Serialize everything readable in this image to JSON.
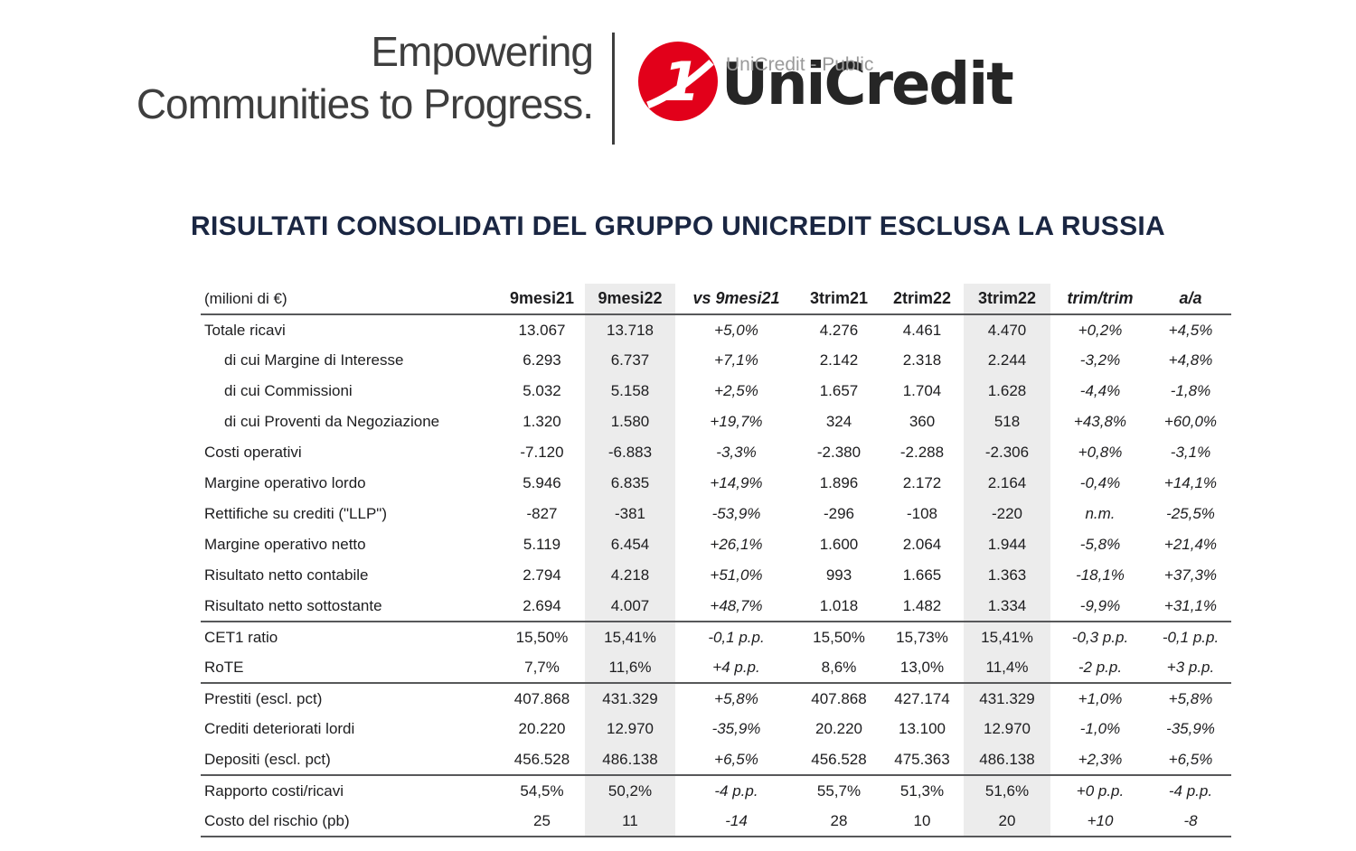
{
  "header": {
    "tagline_line1": "Empowering",
    "tagline_line2": "Communities to Progress.",
    "logo_text": "UniCredit",
    "watermark": "UniCredit - Public"
  },
  "title": "RISULTATI CONSOLIDATI DEL GRUPPO UNICREDIT ESCLUSA LA RUSSIA",
  "colors": {
    "accent_red": "#e2001a",
    "title_navy": "#1a2642",
    "shaded_column": "#ececec",
    "rule_gray": "#57585a"
  },
  "table": {
    "unit_label": "(milioni di €)",
    "columns": [
      {
        "label": "9mesi21",
        "italic": false,
        "shaded": false
      },
      {
        "label": "9mesi22",
        "italic": false,
        "shaded": true
      },
      {
        "label": "vs 9mesi21",
        "italic": true,
        "shaded": false
      },
      {
        "label": "3trim21",
        "italic": false,
        "shaded": false
      },
      {
        "label": "2trim22",
        "italic": false,
        "shaded": false
      },
      {
        "label": "3trim22",
        "italic": false,
        "shaded": true
      },
      {
        "label": "trim/trim",
        "italic": true,
        "shaded": false
      },
      {
        "label": "a/a",
        "italic": true,
        "shaded": false
      }
    ],
    "rows": [
      {
        "label": "Totale ricavi",
        "indent": false,
        "divider_after": false,
        "values": [
          "13.067",
          "13.718",
          "+5,0%",
          "4.276",
          "4.461",
          "4.470",
          "+0,2%",
          "+4,5%"
        ]
      },
      {
        "label": "di cui Margine di Interesse",
        "indent": true,
        "divider_after": false,
        "values": [
          "6.293",
          "6.737",
          "+7,1%",
          "2.142",
          "2.318",
          "2.244",
          "-3,2%",
          "+4,8%"
        ]
      },
      {
        "label": "di cui Commissioni",
        "indent": true,
        "divider_after": false,
        "values": [
          "5.032",
          "5.158",
          "+2,5%",
          "1.657",
          "1.704",
          "1.628",
          "-4,4%",
          "-1,8%"
        ]
      },
      {
        "label": "di cui Proventi da Negoziazione",
        "indent": true,
        "divider_after": false,
        "values": [
          "1.320",
          "1.580",
          "+19,7%",
          "324",
          "360",
          "518",
          "+43,8%",
          "+60,0%"
        ]
      },
      {
        "label": "Costi operativi",
        "indent": false,
        "divider_after": false,
        "values": [
          "-7.120",
          "-6.883",
          "-3,3%",
          "-2.380",
          "-2.288",
          "-2.306",
          "+0,8%",
          "-3,1%"
        ]
      },
      {
        "label": "Margine operativo lordo",
        "indent": false,
        "divider_after": false,
        "values": [
          "5.946",
          "6.835",
          "+14,9%",
          "1.896",
          "2.172",
          "2.164",
          "-0,4%",
          "+14,1%"
        ]
      },
      {
        "label": "Rettifiche su crediti (\"LLP\")",
        "indent": false,
        "divider_after": false,
        "values": [
          "-827",
          "-381",
          "-53,9%",
          "-296",
          "-108",
          "-220",
          "n.m.",
          "-25,5%"
        ]
      },
      {
        "label": "Margine operativo netto",
        "indent": false,
        "divider_after": false,
        "values": [
          "5.119",
          "6.454",
          "+26,1%",
          "1.600",
          "2.064",
          "1.944",
          "-5,8%",
          "+21,4%"
        ]
      },
      {
        "label": "Risultato netto contabile",
        "indent": false,
        "divider_after": false,
        "values": [
          "2.794",
          "4.218",
          "+51,0%",
          "993",
          "1.665",
          "1.363",
          "-18,1%",
          "+37,3%"
        ]
      },
      {
        "label": "Risultato netto sottostante",
        "indent": false,
        "divider_after": true,
        "values": [
          "2.694",
          "4.007",
          "+48,7%",
          "1.018",
          "1.482",
          "1.334",
          "-9,9%",
          "+31,1%"
        ]
      },
      {
        "label": "CET1 ratio",
        "indent": false,
        "divider_after": false,
        "values": [
          "15,50%",
          "15,41%",
          "-0,1 p.p.",
          "15,50%",
          "15,73%",
          "15,41%",
          "-0,3 p.p.",
          "-0,1 p.p."
        ]
      },
      {
        "label": "RoTE",
        "indent": false,
        "divider_after": true,
        "values": [
          "7,7%",
          "11,6%",
          "+4 p.p.",
          "8,6%",
          "13,0%",
          "11,4%",
          "-2 p.p.",
          "+3 p.p."
        ]
      },
      {
        "label": "Prestiti (escl. pct)",
        "indent": false,
        "divider_after": false,
        "values": [
          "407.868",
          "431.329",
          "+5,8%",
          "407.868",
          "427.174",
          "431.329",
          "+1,0%",
          "+5,8%"
        ]
      },
      {
        "label": "Crediti deteriorati lordi",
        "indent": false,
        "divider_after": false,
        "values": [
          "20.220",
          "12.970",
          "-35,9%",
          "20.220",
          "13.100",
          "12.970",
          "-1,0%",
          "-35,9%"
        ]
      },
      {
        "label": "Depositi (escl. pct)",
        "indent": false,
        "divider_after": true,
        "values": [
          "456.528",
          "486.138",
          "+6,5%",
          "456.528",
          "475.363",
          "486.138",
          "+2,3%",
          "+6,5%"
        ]
      },
      {
        "label": "Rapporto costi/ricavi",
        "indent": false,
        "divider_after": false,
        "values": [
          "54,5%",
          "50,2%",
          "-4 p.p.",
          "55,7%",
          "51,3%",
          "51,6%",
          "+0 p.p.",
          "-4 p.p."
        ]
      },
      {
        "label": "Costo del rischio (pb)",
        "indent": false,
        "divider_after": false,
        "values": [
          "25",
          "11",
          "-14",
          "28",
          "10",
          "20",
          "+10",
          "-8"
        ]
      }
    ]
  }
}
